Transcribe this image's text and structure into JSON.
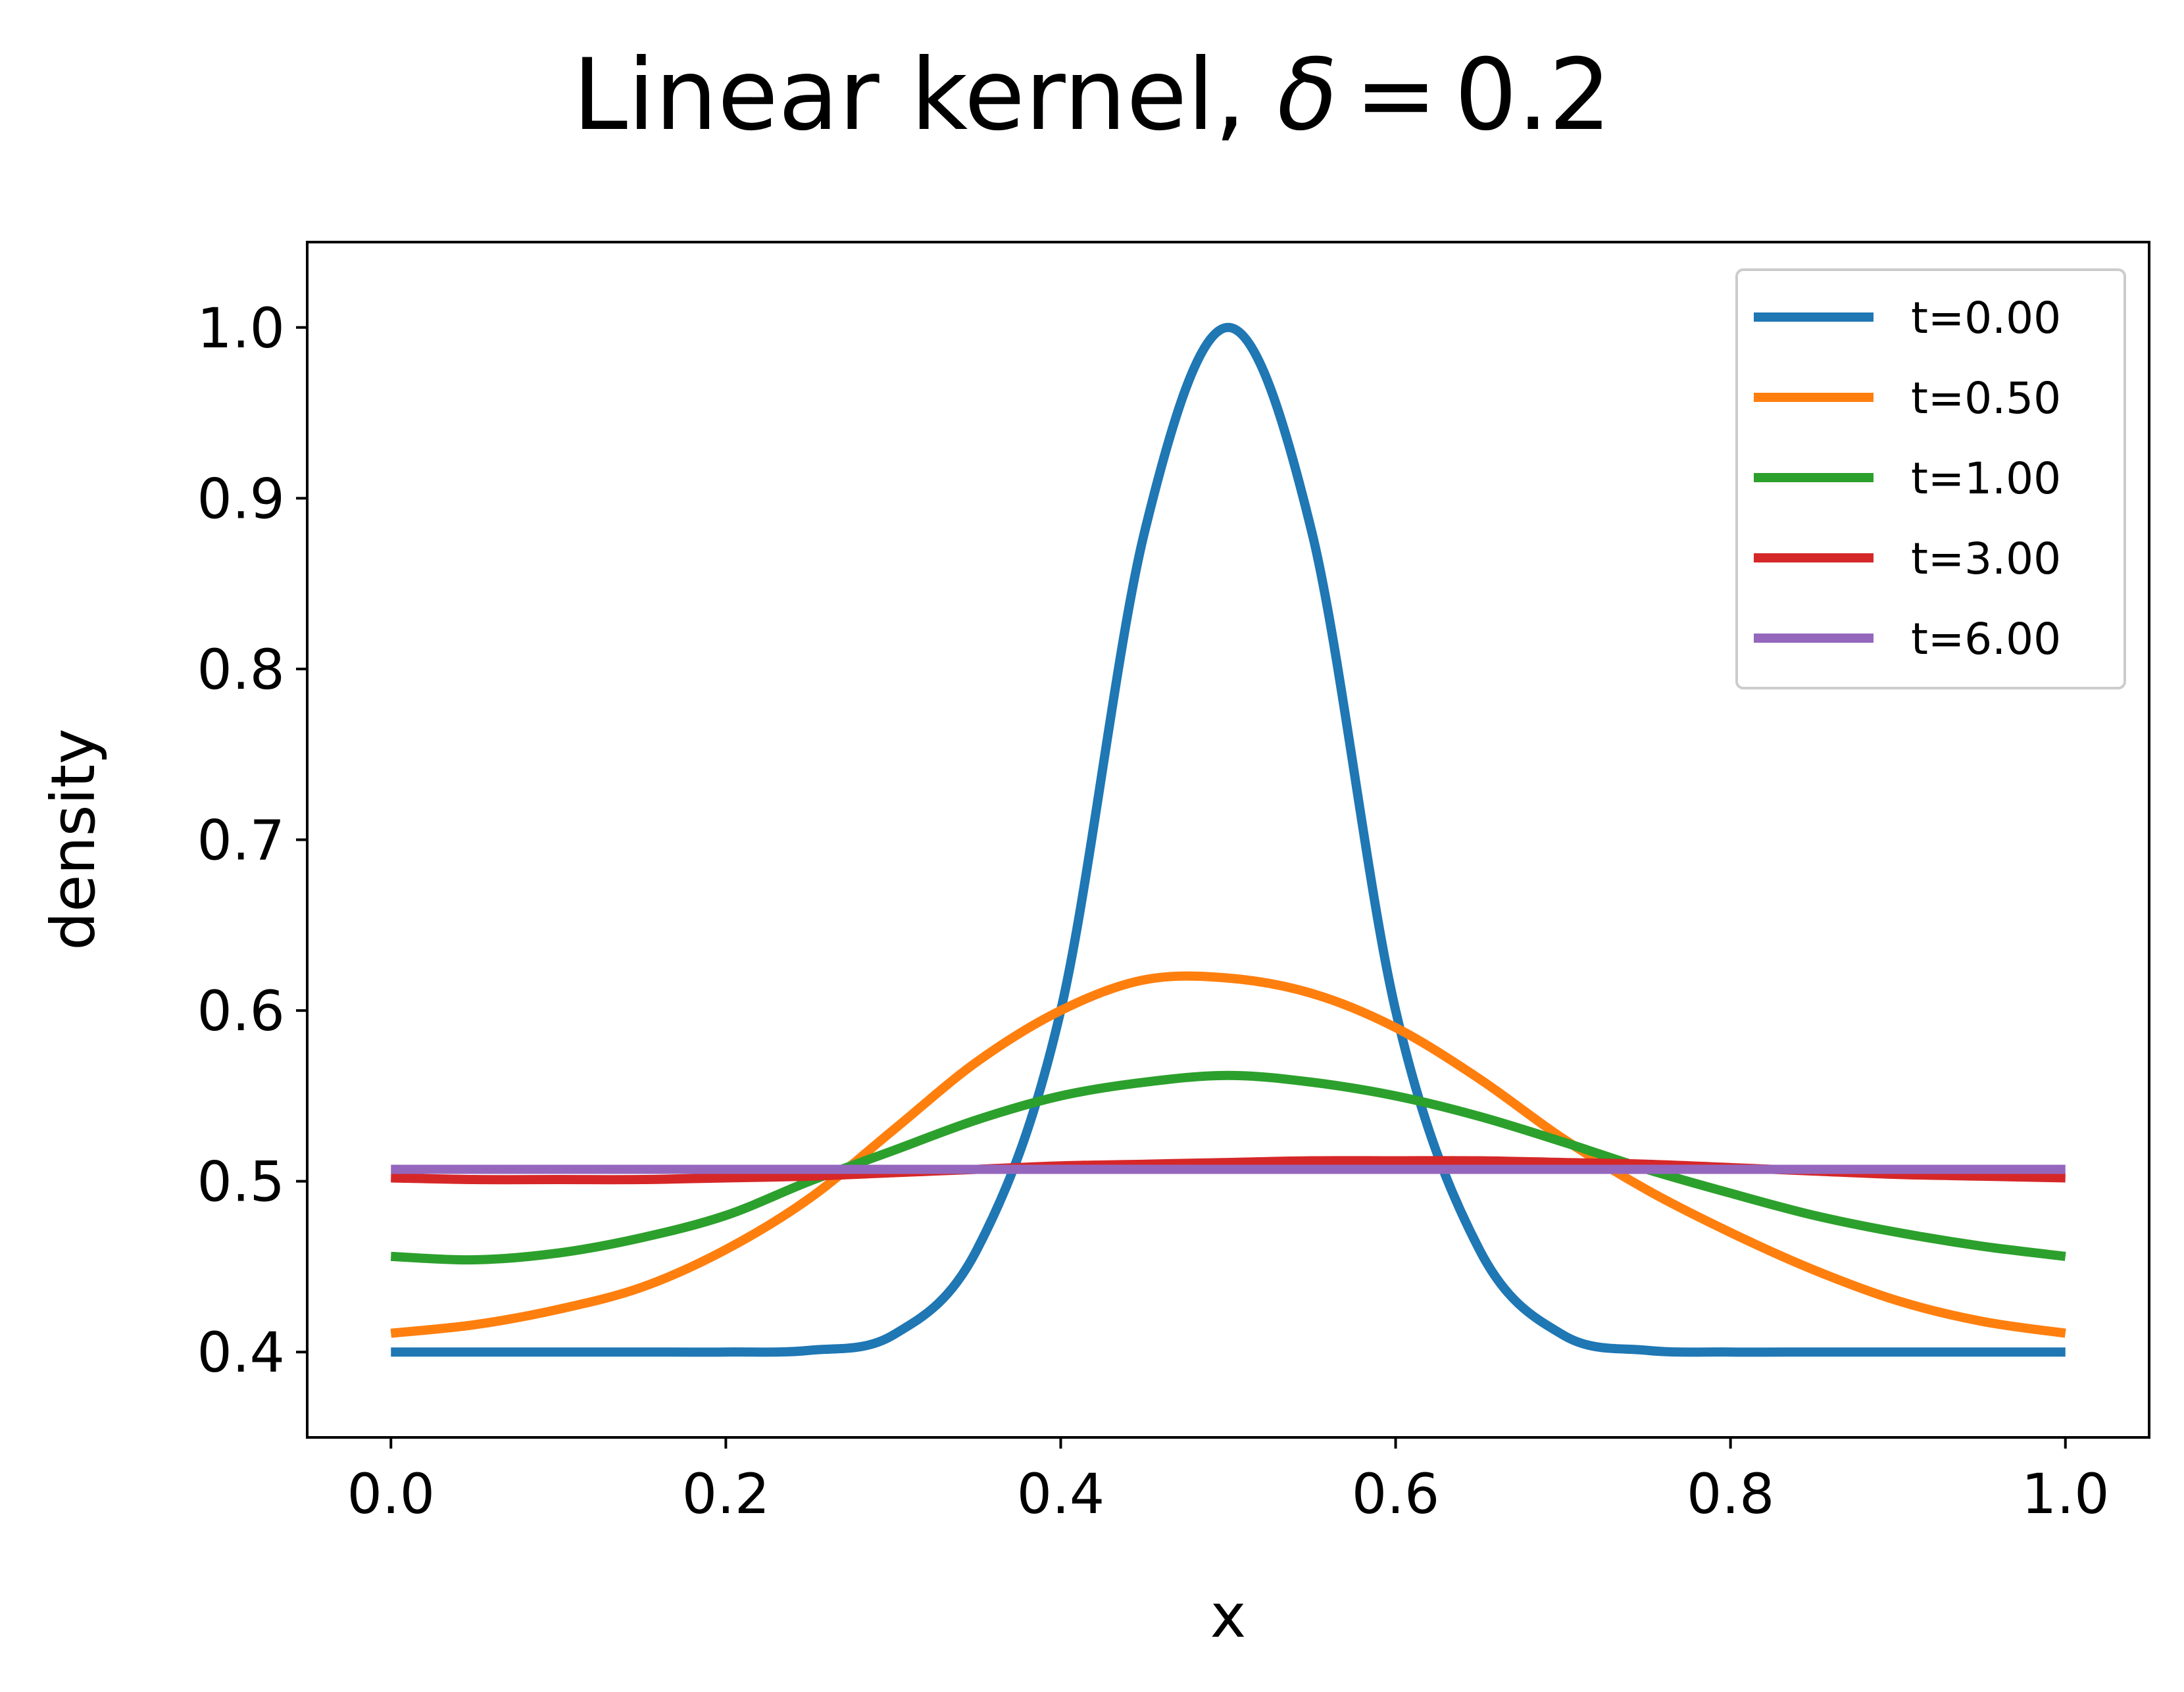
{
  "chart_data": {
    "type": "line",
    "title": "Linear kernel, δ = 0.2",
    "title_parts": {
      "prefix": "Linear kernel, ",
      "symbol": "δ",
      "equals": "=",
      "value": "0.2"
    },
    "xlabel": "x",
    "ylabel": "density",
    "xlim": [
      -0.05,
      1.05
    ],
    "ylim": [
      0.35,
      1.05
    ],
    "xticks": [
      0.0,
      0.2,
      0.4,
      0.6,
      0.8,
      1.0
    ],
    "xtick_labels": [
      "0.0",
      "0.2",
      "0.4",
      "0.6",
      "0.8",
      "1.0"
    ],
    "yticks": [
      0.4,
      0.5,
      0.6,
      0.7,
      0.8,
      0.9,
      1.0
    ],
    "ytick_labels": [
      "0.4",
      "0.5",
      "0.6",
      "0.7",
      "0.8",
      "0.9",
      "1.0"
    ],
    "grid": false,
    "legend_position": "top-right",
    "x": [
      0.0,
      0.05,
      0.1,
      0.15,
      0.2,
      0.25,
      0.3,
      0.35,
      0.4,
      0.45,
      0.5,
      0.55,
      0.6,
      0.65,
      0.7,
      0.75,
      0.8,
      0.85,
      0.9,
      0.95,
      1.0
    ],
    "series": [
      {
        "name": "t=0.00",
        "color": "#1f77b4",
        "values": [
          0.4,
          0.4,
          0.4,
          0.4,
          0.4,
          0.401,
          0.41,
          0.46,
          0.6,
          0.88,
          1.0,
          0.88,
          0.6,
          0.46,
          0.41,
          0.401,
          0.4,
          0.4,
          0.4,
          0.4,
          0.4
        ]
      },
      {
        "name": "t=0.50",
        "color": "#ff7f0e",
        "values": [
          0.411,
          0.416,
          0.425,
          0.438,
          0.46,
          0.49,
          0.53,
          0.57,
          0.6,
          0.618,
          0.619,
          0.61,
          0.59,
          0.56,
          0.525,
          0.495,
          0.47,
          0.448,
          0.43,
          0.418,
          0.411
        ]
      },
      {
        "name": "t=1.00",
        "color": "#2ca02c",
        "values": [
          0.456,
          0.454,
          0.458,
          0.467,
          0.48,
          0.5,
          0.518,
          0.536,
          0.55,
          0.558,
          0.562,
          0.558,
          0.55,
          0.538,
          0.523,
          0.507,
          0.493,
          0.48,
          0.47,
          0.462,
          0.456
        ]
      },
      {
        "name": "t=3.00",
        "color": "#d62728",
        "values": [
          0.502,
          0.501,
          0.501,
          0.501,
          0.502,
          0.503,
          0.505,
          0.507,
          0.509,
          0.51,
          0.511,
          0.512,
          0.512,
          0.512,
          0.511,
          0.51,
          0.508,
          0.506,
          0.504,
          0.503,
          0.502
        ]
      },
      {
        "name": "t=6.00",
        "color": "#9467bd",
        "values": [
          0.507,
          0.507,
          0.507,
          0.507,
          0.507,
          0.507,
          0.507,
          0.507,
          0.507,
          0.507,
          0.507,
          0.507,
          0.507,
          0.507,
          0.507,
          0.507,
          0.507,
          0.507,
          0.507,
          0.507,
          0.507
        ]
      }
    ]
  }
}
